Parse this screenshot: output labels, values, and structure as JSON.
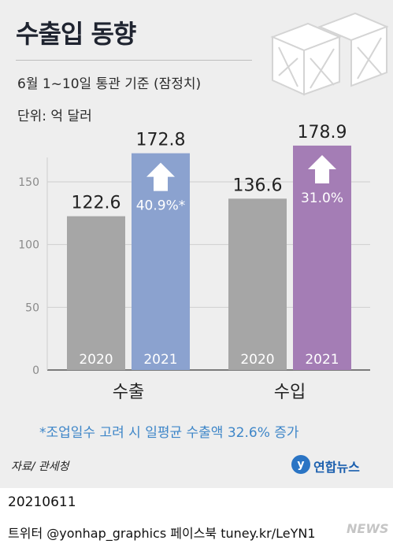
{
  "title": "수출입 동향",
  "subtitle": "6월 1~10일 통관 기준 (잠정치)",
  "unit": "단위: 억 달러",
  "note": "*조업일수 고려 시 일평균 수출액 32.6% 증가",
  "source": "자료/ 관세청",
  "logo": "연합뉴스",
  "date": "20210611",
  "social": "트위터 @yonhap_graphics  페이스북 tuney.kr/LeYN1",
  "watermark": "NEWS",
  "colors": {
    "bar_2020": "#a6a6a6",
    "export_2021": "#8ba2cf",
    "import_2021": "#a47db5",
    "arrow": "#ffffff",
    "note": "#3e86c8"
  },
  "chart_data": {
    "type": "bar",
    "groups": [
      {
        "name": "수출",
        "bars": [
          {
            "year": "2020",
            "value": 122.6,
            "label": "122.6"
          },
          {
            "year": "2021",
            "value": 172.8,
            "label": "172.8",
            "change": "40.9%*"
          }
        ]
      },
      {
        "name": "수입",
        "bars": [
          {
            "year": "2020",
            "value": 136.6,
            "label": "136.6"
          },
          {
            "year": "2021",
            "value": 178.9,
            "label": "178.9",
            "change": "31.0%"
          }
        ]
      }
    ],
    "yticks": [
      0,
      50,
      100,
      150
    ],
    "ylim": [
      0,
      190
    ],
    "grid": true,
    "legend": "none"
  }
}
